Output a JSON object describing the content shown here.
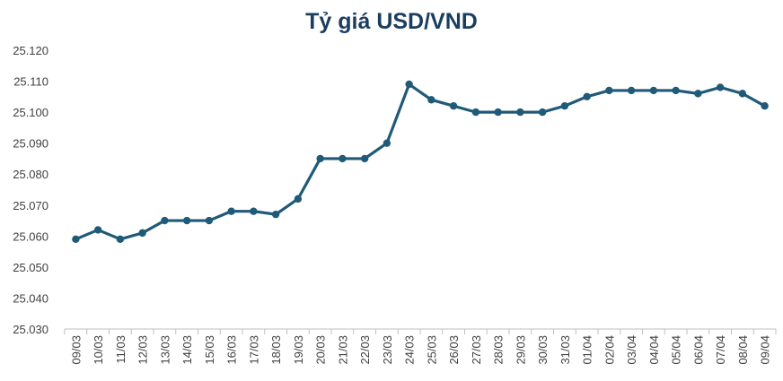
{
  "chart_data": {
    "type": "line",
    "title": "Tỷ giá USD/VND",
    "xlabel": "",
    "ylabel": "",
    "ylim": [
      25030,
      25120
    ],
    "ytick_values": [
      25030,
      25040,
      25050,
      25060,
      25070,
      25080,
      25090,
      25100,
      25110,
      25120
    ],
    "ytick_labels": [
      "25.030",
      "25.040",
      "25.050",
      "25.060",
      "25.070",
      "25.080",
      "25.090",
      "25.100",
      "25.110",
      "25.120"
    ],
    "grid": false,
    "categories": [
      "09/03",
      "10/03",
      "11/03",
      "12/03",
      "13/03",
      "14/03",
      "15/03",
      "16/03",
      "17/03",
      "18/03",
      "19/03",
      "20/03",
      "21/03",
      "22/03",
      "23/03",
      "24/03",
      "25/03",
      "26/03",
      "27/03",
      "28/03",
      "29/03",
      "30/03",
      "31/03",
      "01/04",
      "02/04",
      "03/04",
      "04/04",
      "05/04",
      "06/04",
      "07/04",
      "08/04",
      "09/04"
    ],
    "series": [
      {
        "values": [
          25059,
          25062,
          25059,
          25061,
          25065,
          25065,
          25065,
          25068,
          25068,
          25067,
          25072,
          25085,
          25085,
          25085,
          25090,
          25109,
          25104,
          25102,
          25100,
          25100,
          25100,
          25100,
          25102,
          25105,
          25107,
          25107,
          25107,
          25107,
          25106,
          25108,
          25106,
          25102
        ]
      }
    ],
    "colors": {
      "line": "#1f5a78",
      "axis": "#bfbfbf",
      "title": "#1b3e5f",
      "tick": "#404040"
    }
  }
}
